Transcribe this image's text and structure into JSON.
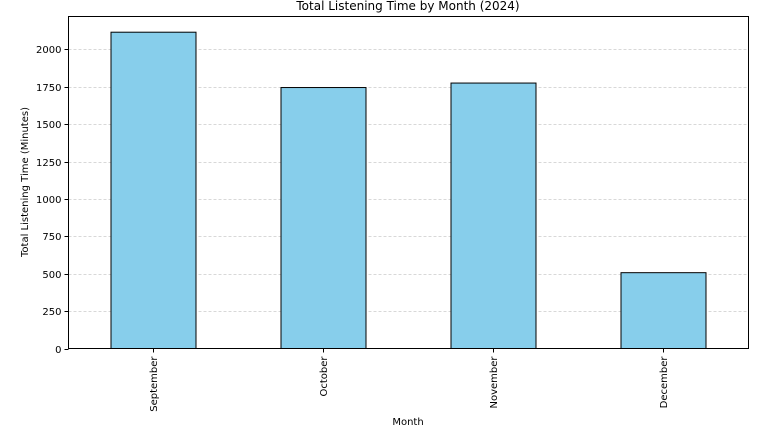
{
  "chart_data": {
    "type": "bar",
    "title": "Total Listening Time by Month (2024)",
    "xlabel": "Month",
    "ylabel": "Total Listening Time (Minutes)",
    "categories": [
      "September",
      "October",
      "November",
      "December"
    ],
    "values": [
      2115,
      1745,
      1775,
      507
    ],
    "ylim": [
      0,
      2220
    ],
    "yticks": [
      0,
      250,
      500,
      750,
      1000,
      1250,
      1500,
      1750,
      2000
    ],
    "ytick_labels": [
      "0",
      "250",
      "500",
      "750",
      "1000",
      "1250",
      "1500",
      "1750",
      "2000"
    ],
    "grid": "y-dashed",
    "legend": "none",
    "bar_color": "#87CEEB",
    "edge_color": "#000000",
    "grid_color": "#cccccc"
  }
}
